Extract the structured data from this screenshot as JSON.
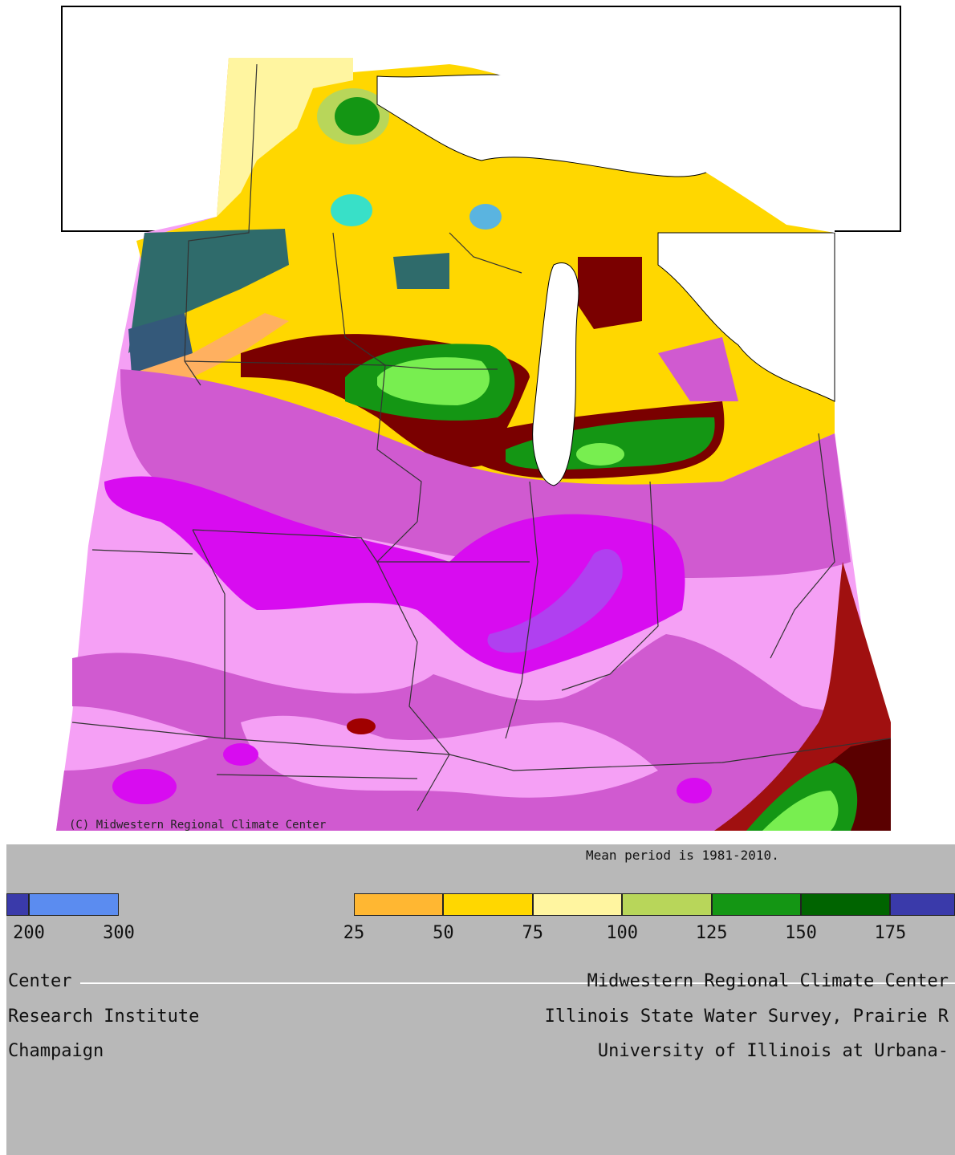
{
  "map": {
    "copyright": "(C) Midwestern Regional Climate Center",
    "mean_period": "Mean period is 1981-2010."
  },
  "legend": {
    "left_ticks": [
      "200",
      "300"
    ],
    "left_colors": [
      "#3a3aaa",
      "#5b8cf0"
    ],
    "right_ticks": [
      "25",
      "50",
      "75",
      "100",
      "125",
      "150",
      "175"
    ],
    "right_colors": [
      "#ffb732",
      "#ffd700",
      "#fff5a0",
      "#b8d65a",
      "#149614",
      "#006400",
      "#3a3aaa"
    ]
  },
  "credits": {
    "left": [
      "Center",
      "Research Institute",
      "Champaign"
    ],
    "right": [
      "Midwestern Regional Climate Center",
      "Illinois State Water Survey, Prairie R",
      "University of Illinois at Urbana-"
    ]
  },
  "colors": {
    "very_dry": "#c02a2a",
    "magenta_dark": "#d80cf0",
    "magenta_mid": "#d05ad0",
    "pink_light": "#f5a0f5",
    "purple": "#b040f0",
    "dark_red": "#7a0000",
    "gold": "#ffd700",
    "teal": "#2f6b6b",
    "water": "#ffffff"
  }
}
